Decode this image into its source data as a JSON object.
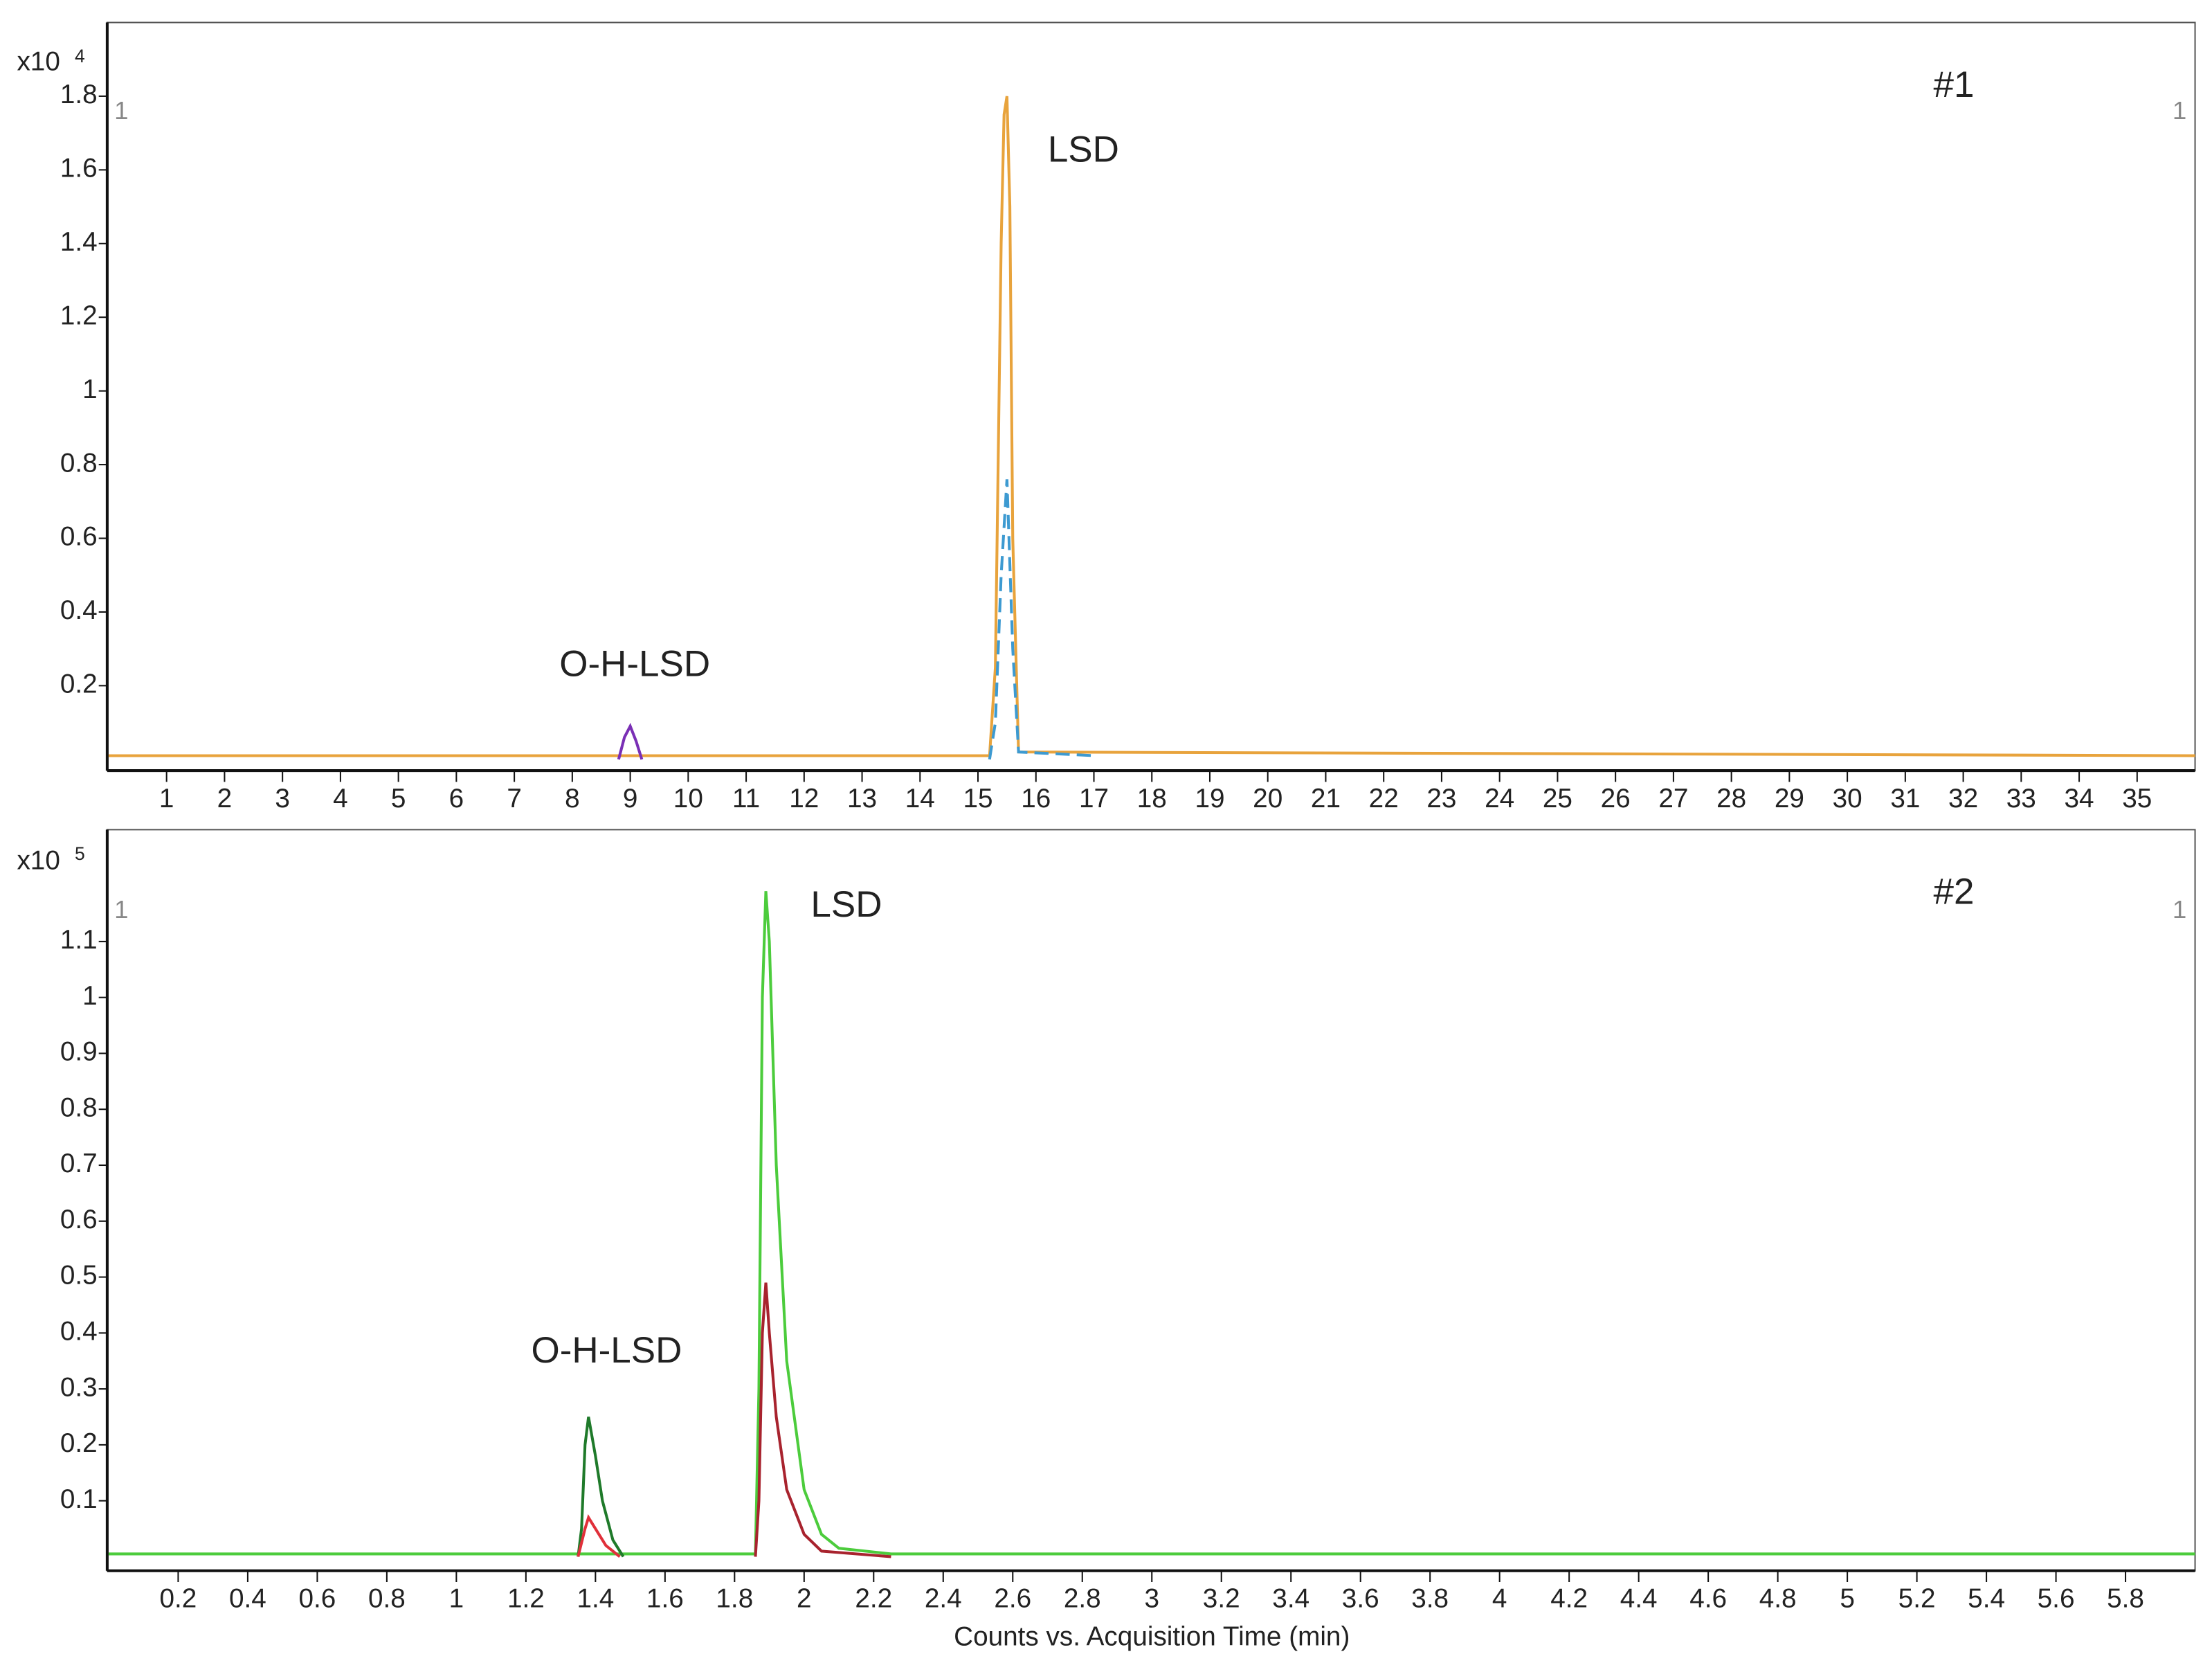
{
  "chart_data": [
    {
      "type": "line",
      "y_multiplier": "x10",
      "y_exponent": "4",
      "panel_label": "#1",
      "corner_labels": [
        "1",
        "1"
      ],
      "annotations": [
        "LSD",
        "O-H-LSD"
      ],
      "xlim": [
        0,
        36
      ],
      "xticks": [
        1,
        2,
        3,
        4,
        5,
        6,
        7,
        8,
        9,
        10,
        11,
        12,
        13,
        14,
        15,
        16,
        17,
        18,
        19,
        20,
        21,
        22,
        23,
        24,
        25,
        26,
        27,
        28,
        29,
        30,
        31,
        32,
        33,
        34,
        35
      ],
      "ylim": [
        0,
        2.0
      ],
      "yticks": [
        0.2,
        0.4,
        0.6,
        0.8,
        1,
        1.2,
        1.4,
        1.6,
        1.8
      ],
      "series": [
        {
          "color": "#e8a33c",
          "dashed": false,
          "x": [
            0,
            15.2,
            15.3,
            15.4,
            15.45,
            15.5,
            15.55,
            15.6,
            15.7,
            36
          ],
          "values": [
            0.01,
            0.01,
            0.25,
            1.4,
            1.75,
            1.8,
            1.5,
            0.6,
            0.02,
            0.01
          ]
        },
        {
          "color": "#3d9ad1",
          "dashed": true,
          "x": [
            15.2,
            15.3,
            15.4,
            15.5,
            15.6,
            15.7,
            17.0
          ],
          "values": [
            0,
            0.1,
            0.5,
            0.76,
            0.3,
            0.02,
            0.01
          ]
        },
        {
          "color": "#7a2fb5",
          "dashed": false,
          "x": [
            8.8,
            8.9,
            9.0,
            9.1,
            9.2
          ],
          "values": [
            0,
            0.06,
            0.09,
            0.05,
            0
          ]
        }
      ]
    },
    {
      "type": "line",
      "y_multiplier": "x10",
      "y_exponent": "5",
      "panel_label": "#2",
      "corner_labels": [
        "1",
        "1"
      ],
      "annotations": [
        "LSD",
        "O-H-LSD"
      ],
      "x_label": "Counts vs. Acquisition Time (min)",
      "xlim": [
        0,
        6.0
      ],
      "xticks": [
        0.2,
        0.4,
        0.6,
        0.8,
        1,
        1.2,
        1.4,
        1.6,
        1.8,
        2,
        2.2,
        2.4,
        2.6,
        2.8,
        3,
        3.2,
        3.4,
        3.6,
        3.8,
        4,
        4.2,
        4.4,
        4.6,
        4.8,
        5,
        5.2,
        5.4,
        5.6,
        5.8
      ],
      "ylim": [
        0,
        1.3
      ],
      "yticks": [
        0.1,
        0.2,
        0.3,
        0.4,
        0.5,
        0.6,
        0.7,
        0.8,
        0.9,
        1,
        1.1
      ],
      "series": [
        {
          "color": "#4ccc3c",
          "dashed": false,
          "x": [
            0,
            1.86,
            1.87,
            1.88,
            1.89,
            1.9,
            1.92,
            1.95,
            2.0,
            2.05,
            2.1,
            2.25,
            6.0
          ],
          "values": [
            0.005,
            0.005,
            0.3,
            1.0,
            1.19,
            1.1,
            0.7,
            0.35,
            0.12,
            0.04,
            0.015,
            0.005,
            0.005
          ]
        },
        {
          "color": "#a8232e",
          "dashed": false,
          "x": [
            1.86,
            1.87,
            1.88,
            1.89,
            1.9,
            1.92,
            1.95,
            2.0,
            2.05,
            2.25
          ],
          "values": [
            0,
            0.1,
            0.4,
            0.49,
            0.4,
            0.25,
            0.12,
            0.04,
            0.01,
            0
          ]
        },
        {
          "color": "#1f7a2a",
          "dashed": false,
          "x": [
            1.35,
            1.36,
            1.37,
            1.38,
            1.4,
            1.42,
            1.45,
            1.48
          ],
          "values": [
            0,
            0.05,
            0.2,
            0.25,
            0.18,
            0.1,
            0.03,
            0
          ]
        },
        {
          "color": "#e0303a",
          "dashed": false,
          "x": [
            1.35,
            1.37,
            1.38,
            1.4,
            1.43,
            1.47
          ],
          "values": [
            0,
            0.05,
            0.07,
            0.05,
            0.02,
            0
          ]
        }
      ]
    }
  ]
}
